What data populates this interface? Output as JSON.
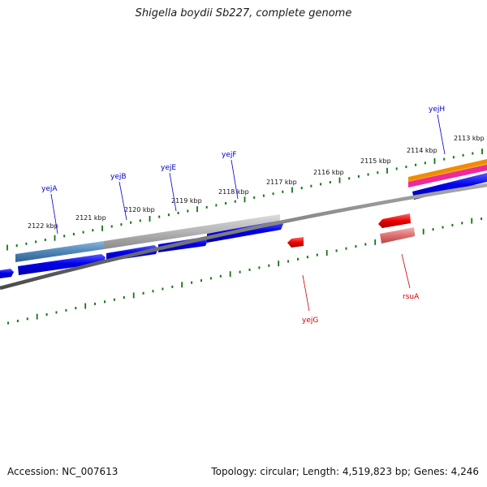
{
  "title": "Shigella boydii Sb227, complete genome",
  "footer": {
    "accession": "Accession: NC_007613",
    "summary": "Topology: circular; Length: 4,519,823 bp; Genes: 4,246"
  },
  "ticks": [
    {
      "label": "2122 kbp"
    },
    {
      "label": "2121 kbp"
    },
    {
      "label": "2120 kbp"
    },
    {
      "label": "2119 kbp"
    },
    {
      "label": "2118 kbp"
    },
    {
      "label": "2117 kbp"
    },
    {
      "label": "2116 kbp"
    },
    {
      "label": "2115 kbp"
    },
    {
      "label": "2114 kbp"
    },
    {
      "label": "2113 kbp"
    }
  ],
  "genes_top": [
    {
      "name": "yejA",
      "color": "#0000ee"
    },
    {
      "name": "yejB",
      "color": "#0000ee"
    },
    {
      "name": "yejE",
      "color": "#0000ee"
    },
    {
      "name": "yejF",
      "color": "#0000ee"
    },
    {
      "name": "yejH",
      "color": "#0000ee"
    }
  ],
  "genes_bottom": [
    {
      "name": "yejG",
      "color": "#ee0000"
    },
    {
      "name": "rsuA",
      "color": "#ee0000"
    }
  ],
  "colors": {
    "forward_cds": "#0000ee",
    "reverse_cds": "#ee0000",
    "reverse_cds_light": "#e07070",
    "backbone": "#7a7a7a",
    "tick": "#117711",
    "feature_gray": "#b4b4b4",
    "feature_steelblue": "#4f86b8",
    "feature_orange": "#f08c00",
    "feature_magenta": "#ee2a9a"
  }
}
